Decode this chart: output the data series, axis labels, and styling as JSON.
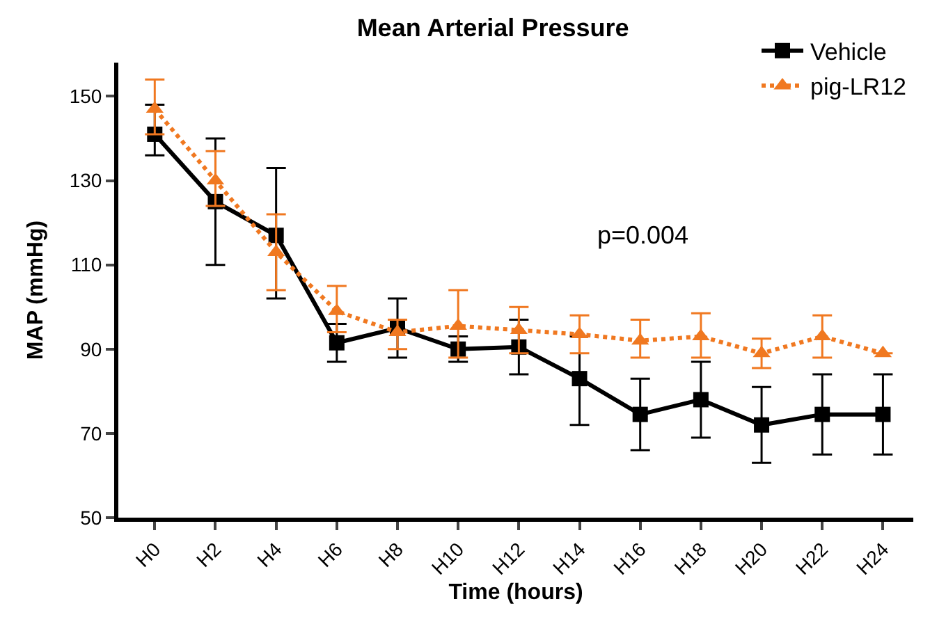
{
  "chart_data": {
    "type": "line",
    "title": "Mean Arterial Pressure",
    "xlabel": "Time (hours)",
    "ylabel": "MAP (mmHg)",
    "categories": [
      "H0",
      "H2",
      "H4",
      "H6",
      "H8",
      "H10",
      "H12",
      "H14",
      "H16",
      "H18",
      "H20",
      "H22",
      "H24"
    ],
    "series": [
      {
        "name": "Vehicle",
        "color": "#000000",
        "marker": "square",
        "line_style": "solid",
        "values": [
          141,
          125,
          117,
          91.5,
          95,
          90,
          90.5,
          83,
          74.5,
          78,
          72,
          74.5,
          74.5
        ],
        "errors": [
          [
            136,
            148
          ],
          [
            110,
            140
          ],
          [
            102,
            133
          ],
          [
            87,
            96
          ],
          [
            88,
            102
          ],
          [
            87,
            93
          ],
          [
            84,
            97
          ],
          [
            72,
            93
          ],
          [
            66,
            83
          ],
          [
            69,
            87
          ],
          [
            63,
            81
          ],
          [
            65,
            84
          ],
          [
            65,
            84
          ]
        ]
      },
      {
        "name": "pig-LR12",
        "color": "#f07820",
        "marker": "triangle",
        "line_style": "dotted",
        "values": [
          147,
          130,
          113,
          99,
          94,
          95.5,
          94.5,
          93.5,
          92,
          93,
          89,
          93,
          89
        ],
        "errors": [
          [
            141,
            154
          ],
          [
            124,
            137
          ],
          [
            104,
            122
          ],
          [
            94,
            105
          ],
          [
            90,
            97
          ],
          [
            88,
            104
          ],
          [
            89,
            100
          ],
          [
            89,
            98
          ],
          [
            88,
            97
          ],
          [
            88,
            98.5
          ],
          [
            85.5,
            92.5
          ],
          [
            88,
            98
          ],
          null
        ]
      }
    ],
    "ylim": [
      50,
      158
    ],
    "yticks": [
      50,
      70,
      90,
      110,
      130,
      150
    ],
    "legend": "top right",
    "annotations": [
      "p=0.004"
    ]
  }
}
